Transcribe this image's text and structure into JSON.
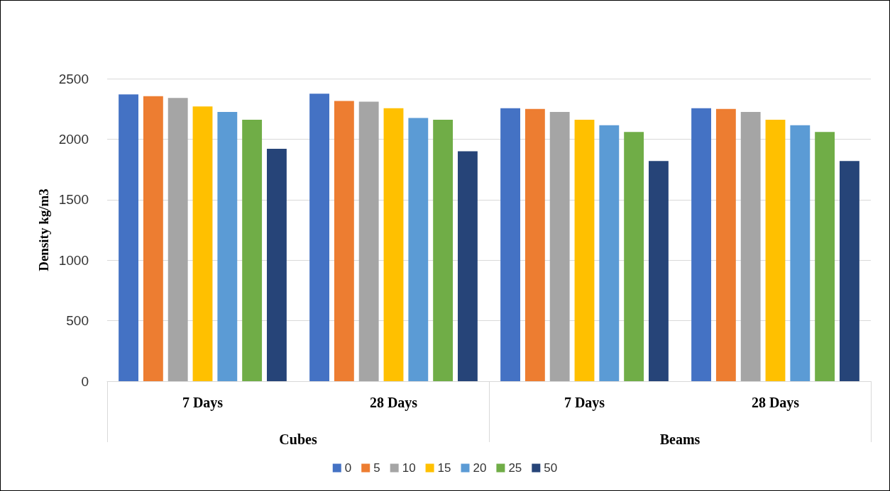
{
  "chart_data": {
    "type": "bar",
    "ylabel": "Density kg/m3",
    "categories": [
      "7 Days",
      "28 Days",
      "7 Days",
      "28 Days"
    ],
    "annotations": [
      "Cubes",
      "Beams"
    ],
    "series": [
      {
        "name": "0",
        "color": "#4472c4",
        "values": [
          2370,
          2375,
          2255,
          2255
        ]
      },
      {
        "name": "5",
        "color": "#ed7d31",
        "values": [
          2355,
          2315,
          2250,
          2250
        ]
      },
      {
        "name": "10",
        "color": "#a5a5a5",
        "values": [
          2340,
          2310,
          2225,
          2225
        ]
      },
      {
        "name": "15",
        "color": "#ffc000",
        "values": [
          2270,
          2255,
          2160,
          2160
        ]
      },
      {
        "name": "20",
        "color": "#5b9bd5",
        "values": [
          2225,
          2175,
          2115,
          2115
        ]
      },
      {
        "name": "25",
        "color": "#70ad47",
        "values": [
          2160,
          2160,
          2060,
          2060
        ]
      },
      {
        "name": "50",
        "color": "#264478",
        "values": [
          1920,
          1900,
          1820,
          1820
        ]
      }
    ],
    "ylim": [
      0,
      2500
    ],
    "yticks": [
      0,
      500,
      1000,
      1500,
      2000,
      2500
    ],
    "grid": "y",
    "legend": "bottom"
  }
}
